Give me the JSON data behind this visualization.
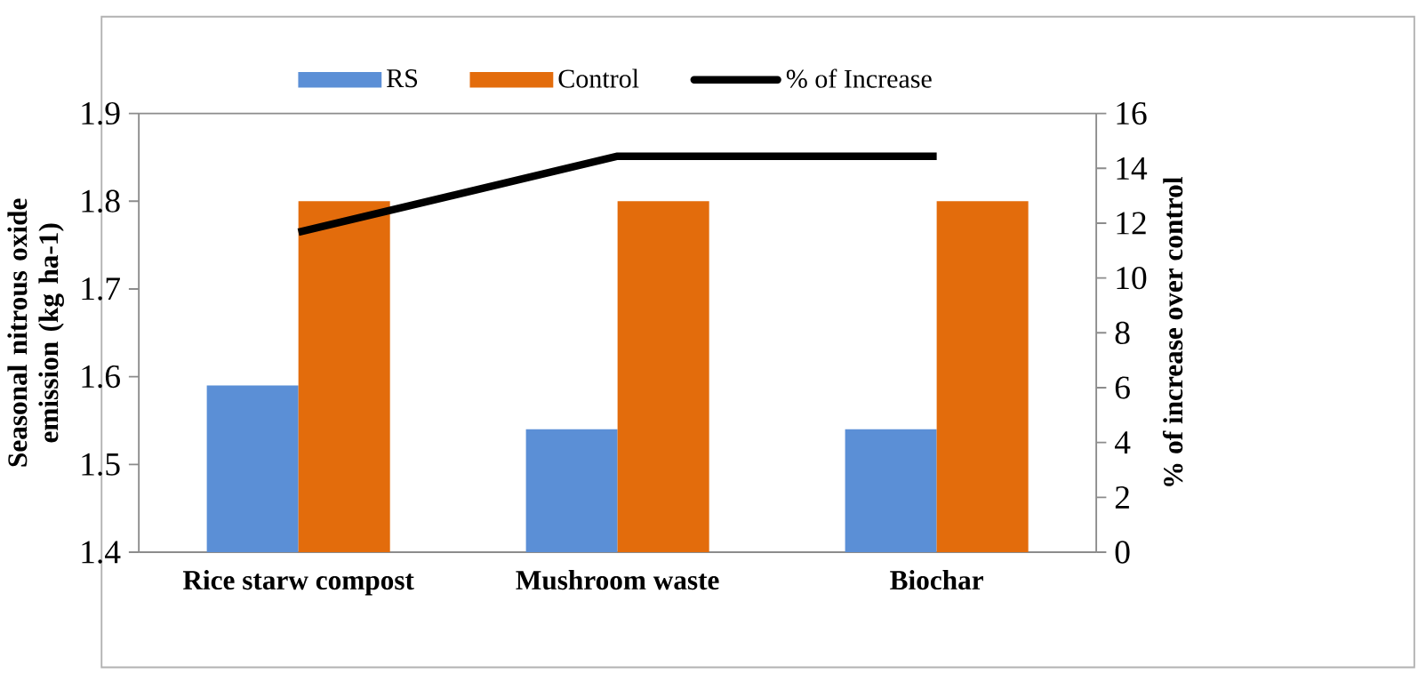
{
  "chart_data": {
    "type": "bar",
    "categories": [
      "Rice starw compost",
      "Mushroom waste",
      "Biochar"
    ],
    "ylabel": "Seasonal nitrous oxide emission (kg ha-1)",
    "y2label": "% of increase over control",
    "ylim": [
      1.4,
      1.9
    ],
    "yticks": [
      1.4,
      1.5,
      1.6,
      1.7,
      1.8,
      1.9
    ],
    "y2lim": [
      0,
      16
    ],
    "y2ticks": [
      0,
      2,
      4,
      6,
      8,
      10,
      12,
      14,
      16
    ],
    "legend": "top",
    "series": [
      {
        "name": "RS",
        "color": "#5b8fd6",
        "values": [
          1.59,
          1.54,
          1.54
        ]
      },
      {
        "name": "Control",
        "color": "#e36c0c",
        "values": [
          1.8,
          1.8,
          1.8
        ]
      },
      {
        "name": "% of Increase",
        "type": "line",
        "axis": "y2",
        "color": "#000000",
        "values": [
          11.67,
          14.44,
          14.44
        ]
      }
    ]
  }
}
